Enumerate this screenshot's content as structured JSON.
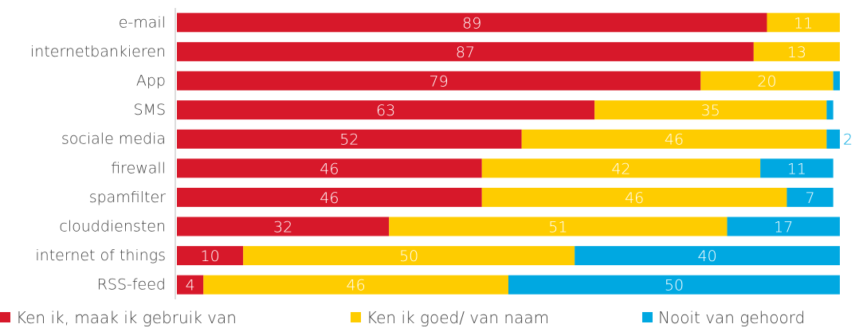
{
  "chart_data": {
    "type": "stacked_bar_horizontal",
    "categories": [
      "e-mail",
      "internetbankieren",
      "App",
      "SMS",
      "sociale media",
      "firewall",
      "spamfilter",
      "clouddiensten",
      "internet of things",
      "RSS-feed"
    ],
    "series": [
      {
        "name": "Ken ik, maak ik gebruik van",
        "color": "#d7182a",
        "values": [
          89,
          87,
          79,
          63,
          52,
          46,
          46,
          32,
          10,
          4
        ]
      },
      {
        "name": "Ken ik goed/ van naam",
        "color": "#fecc00",
        "values": [
          11,
          13,
          20,
          35,
          46,
          42,
          46,
          51,
          50,
          46
        ]
      },
      {
        "name": "Nooit van gehoord",
        "color": "#00a8e1",
        "values": [
          0,
          0,
          1,
          1,
          2,
          11,
          7,
          17,
          40,
          50
        ],
        "value_labels": [
          null,
          null,
          null,
          null,
          "2",
          "11",
          "7",
          "17",
          "40",
          "50"
        ]
      }
    ],
    "xlim": [
      0,
      100
    ],
    "legend": "bottom"
  }
}
